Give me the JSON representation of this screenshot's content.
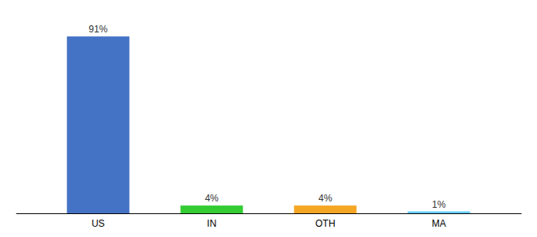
{
  "chart_data": {
    "type": "bar",
    "categories": [
      "US",
      "IN",
      "OTH",
      "MA"
    ],
    "values": [
      91,
      4,
      4,
      1
    ],
    "value_labels": [
      "91%",
      "4%",
      "4%",
      "1%"
    ],
    "colors": [
      "#4472c4",
      "#33cc33",
      "#f5a623",
      "#66ccff"
    ],
    "ylim": [
      0,
      100
    ],
    "data_labels": true,
    "tick_labels": "x",
    "grid": false
  }
}
